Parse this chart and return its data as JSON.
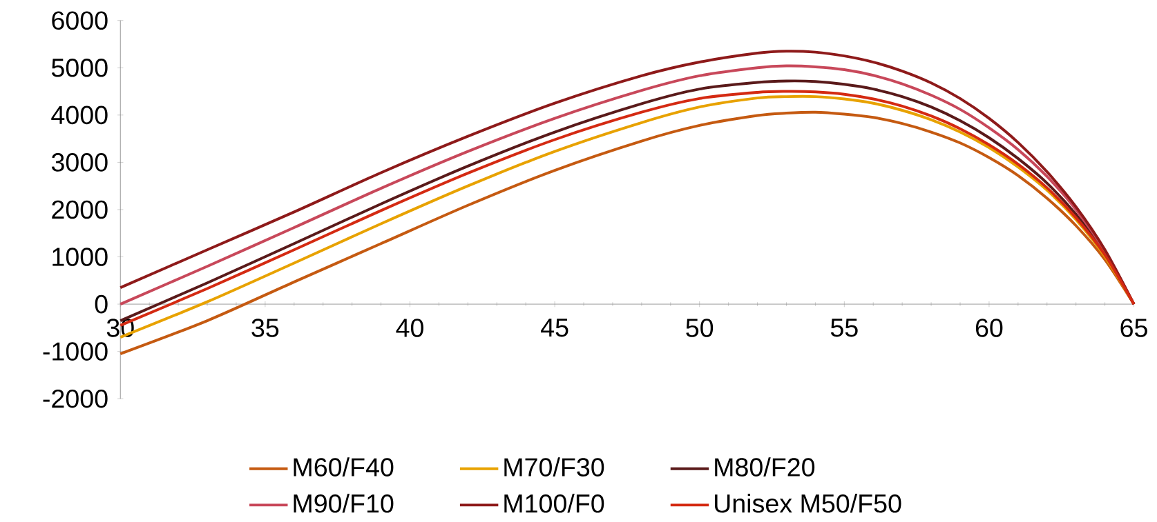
{
  "chart_data": {
    "type": "line",
    "x": [
      30,
      33,
      36,
      39,
      42,
      45,
      48,
      50,
      52,
      53,
      54,
      55,
      56,
      57,
      58,
      59,
      60,
      61,
      62,
      63,
      64,
      65
    ],
    "series": [
      {
        "name": "M60/F40",
        "color": "#c55a11",
        "values": [
          -1050,
          -350,
          470,
          1280,
          2090,
          2830,
          3450,
          3780,
          3990,
          4040,
          4060,
          4020,
          3950,
          3820,
          3640,
          3410,
          3100,
          2720,
          2240,
          1660,
          940,
          0
        ]
      },
      {
        "name": "M70/F30",
        "color": "#e8a200",
        "values": [
          -700,
          50,
          870,
          1700,
          2500,
          3230,
          3840,
          4170,
          4360,
          4390,
          4390,
          4340,
          4250,
          4100,
          3900,
          3640,
          3310,
          2900,
          2410,
          1790,
          1010,
          0
        ]
      },
      {
        "name": "M80/F20",
        "color": "#5a1a1a",
        "values": [
          -350,
          450,
          1280,
          2120,
          2920,
          3640,
          4240,
          4550,
          4690,
          4720,
          4710,
          4650,
          4550,
          4390,
          4170,
          3880,
          3520,
          3080,
          2560,
          1900,
          1070,
          0
        ]
      },
      {
        "name": "M90/F10",
        "color": "#c8485a",
        "values": [
          0,
          800,
          1620,
          2450,
          3230,
          3930,
          4520,
          4830,
          5000,
          5040,
          5020,
          4960,
          4840,
          4660,
          4420,
          4120,
          3730,
          3270,
          2700,
          2000,
          1120,
          0
        ]
      },
      {
        "name": "M100/F0",
        "color": "#8e1a1a",
        "values": [
          350,
          1150,
          1950,
          2780,
          3550,
          4250,
          4830,
          5120,
          5310,
          5350,
          5330,
          5250,
          5120,
          4930,
          4680,
          4350,
          3930,
          3420,
          2800,
          2060,
          1150,
          0
        ]
      },
      {
        "name": "Unisex M50/F50",
        "color": "#d42a12",
        "values": [
          -450,
          330,
          1150,
          1980,
          2770,
          3480,
          4060,
          4350,
          4480,
          4500,
          4490,
          4440,
          4340,
          4190,
          3980,
          3710,
          3370,
          2960,
          2460,
          1830,
          1040,
          0
        ]
      }
    ],
    "xlim": [
      30,
      65
    ],
    "xticks": [
      30,
      35,
      40,
      45,
      50,
      55,
      60,
      65
    ],
    "ylim": [
      -2000,
      6000
    ],
    "yticks": [
      -2000,
      -1000,
      0,
      1000,
      2000,
      3000,
      4000,
      5000,
      6000
    ],
    "grid": false,
    "legend": "bottom",
    "marker": "none",
    "line_style": "solid"
  }
}
